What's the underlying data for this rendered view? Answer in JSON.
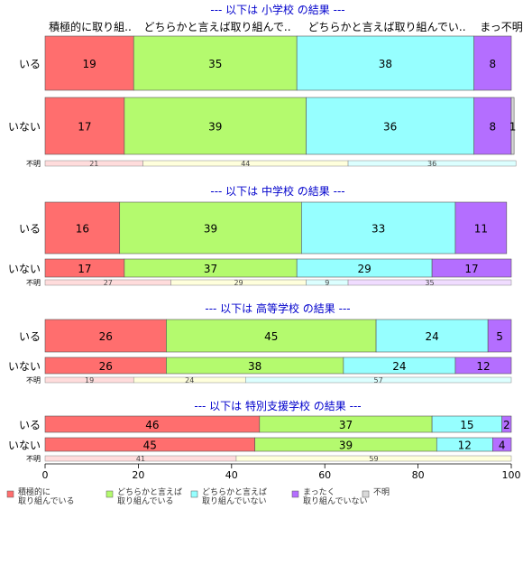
{
  "chart_data": {
    "type": "bar",
    "orientation": "horizontal",
    "stacked": true,
    "xlim": [
      0,
      100
    ],
    "x_ticks": [
      "0",
      "20",
      "40",
      "60",
      "80",
      "100"
    ],
    "column_headers": [
      "積極的に取り組..",
      "どちらかと言えば取り組んで..",
      "どちらかと言えば取り組んでい..",
      "まっ不明"
    ],
    "legend": [
      {
        "line1": "積極的に",
        "line2": "取り組んでいる",
        "color": "#FF6E6E"
      },
      {
        "line1": "どちらかと言えば",
        "line2": "取り組んでいる",
        "color": "#B4FA6E"
      },
      {
        "line1": "どちらかと言えば",
        "line2": "取り組んでいない",
        "color": "#96FFFF"
      },
      {
        "line1": "まったく",
        "line2": "取り組んでいない",
        "color": "#B46EFF"
      },
      {
        "line1": "不明",
        "line2": "",
        "color": "#D9D9D9"
      }
    ],
    "panels": [
      {
        "title": "--- 以下は 小学校 の結果 ---",
        "rows": [
          {
            "label": "いる",
            "values": [
              19,
              35,
              38,
              8,
              0
            ],
            "labels": [
              "19",
              "35",
              "38",
              "8",
              ""
            ]
          },
          {
            "label": "いない",
            "values": [
              17,
              39,
              36,
              8,
              0.6
            ],
            "labels": [
              "17",
              "39",
              "36",
              "8",
              "1"
            ]
          }
        ],
        "unknown": {
          "label": "不明",
          "values": [
            21,
            44,
            36
          ],
          "labels": [
            "21",
            "44",
            "36"
          ]
        }
      },
      {
        "title": "--- 以下は 中学校 の結果 ---",
        "rows": [
          {
            "label": "いる",
            "values": [
              16,
              39,
              33,
              11,
              0
            ],
            "labels": [
              "16",
              "39",
              "33",
              "11",
              ""
            ]
          },
          {
            "label": "いない",
            "values": [
              17,
              37,
              29,
              17,
              0
            ],
            "labels": [
              "17",
              "37",
              "29",
              "17",
              ""
            ]
          }
        ],
        "unknown": {
          "label": "不明",
          "values": [
            27,
            29,
            9,
            35
          ],
          "labels": [
            "27",
            "29",
            "9",
            "35"
          ]
        }
      },
      {
        "title": "--- 以下は 高等学校 の結果 ---",
        "rows": [
          {
            "label": "いる",
            "values": [
              26,
              45,
              24,
              5,
              0
            ],
            "labels": [
              "26",
              "45",
              "24",
              "5",
              ""
            ]
          },
          {
            "label": "いない",
            "values": [
              26,
              38,
              24,
              12,
              0
            ],
            "labels": [
              "26",
              "38",
              "24",
              "12",
              ""
            ]
          }
        ],
        "unknown": {
          "label": "不明",
          "values": [
            19,
            24,
            57
          ],
          "labels": [
            "19",
            "24",
            "57"
          ]
        }
      },
      {
        "title": "--- 以下は 特別支援学校 の結果 ---",
        "rows": [
          {
            "label": "いる",
            "values": [
              46,
              37,
              15,
              2,
              0
            ],
            "labels": [
              "46",
              "37",
              "15",
              "2",
              ""
            ]
          },
          {
            "label": "いない",
            "values": [
              45,
              39,
              12,
              4,
              0
            ],
            "labels": [
              "45",
              "39",
              "12",
              "4",
              ""
            ]
          }
        ],
        "unknown": {
          "label": "不明",
          "values": [
            41,
            59
          ],
          "labels": [
            "41",
            "59"
          ]
        }
      }
    ]
  }
}
